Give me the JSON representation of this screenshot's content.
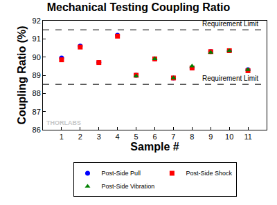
{
  "chart_data": {
    "type": "scatter",
    "title": "Mechanical Testing Coupling Ratio",
    "x_label": "Sample #",
    "y_label": "Coupling Ratio (%)",
    "x": [
      1,
      2,
      3,
      4,
      5,
      6,
      7,
      8,
      9,
      10,
      11
    ],
    "series": [
      {
        "name": "Post-Side Pull",
        "color": "#0000ff",
        "marker": "circle",
        "values": [
          89.95,
          90.6,
          89.7,
          91.2,
          89.0,
          89.9,
          88.85,
          89.4,
          90.3,
          90.35,
          89.3
        ]
      },
      {
        "name": "Post-Side Shock",
        "color": "#ff0000",
        "marker": "square",
        "values": [
          89.85,
          90.55,
          89.7,
          91.15,
          89.0,
          89.9,
          88.85,
          89.4,
          90.3,
          90.35,
          89.25
        ]
      },
      {
        "name": "Post-Side Vibration",
        "color": "#008000",
        "marker": "triangle",
        "values": [
          null,
          null,
          null,
          null,
          88.95,
          89.9,
          88.85,
          89.5,
          90.25,
          90.35,
          89.3
        ]
      }
    ],
    "reference_lines": [
      {
        "value": 91.5,
        "label": "Requirement Limit",
        "line_style": "dash"
      },
      {
        "value": 88.5,
        "label": "Requirement Limit",
        "line_style": "dash"
      }
    ],
    "watermark": "THORLABS",
    "xlim": [
      0,
      12
    ],
    "xticks": [
      1,
      2,
      3,
      4,
      5,
      6,
      7,
      8,
      9,
      10,
      11
    ],
    "ylim": [
      86,
      92
    ],
    "yticks": [
      86,
      87,
      88,
      89,
      90,
      91,
      92
    ],
    "grid": false,
    "legend": "bottom"
  }
}
